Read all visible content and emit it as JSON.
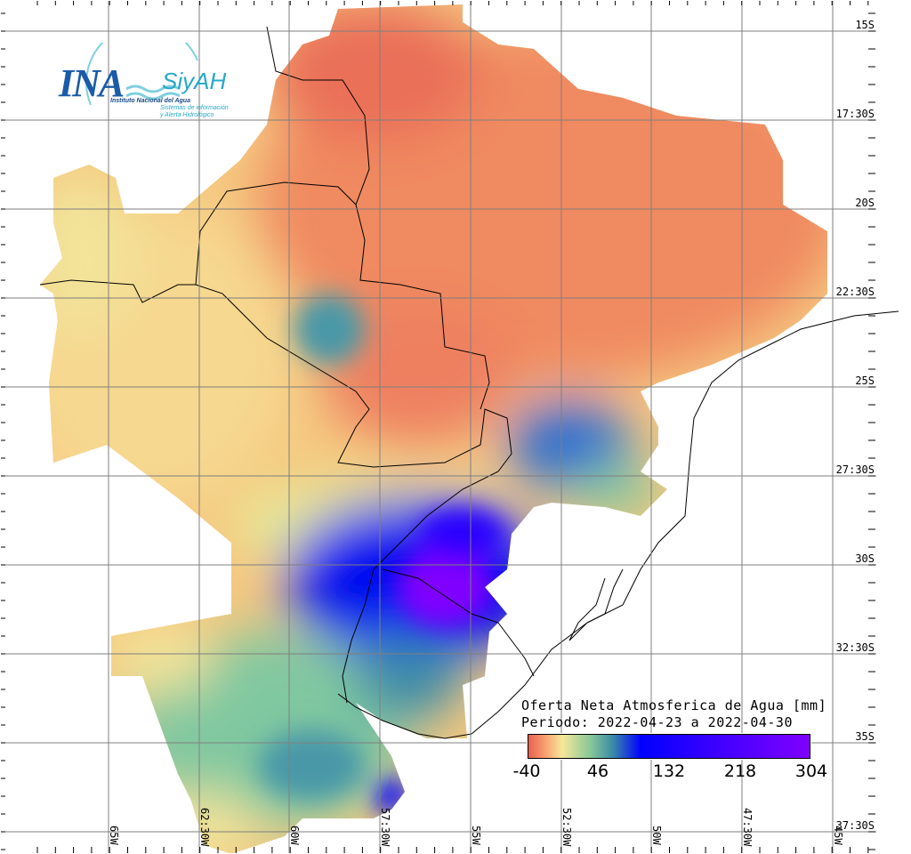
{
  "logo": {
    "acronym": "INA",
    "system": "SiyAH",
    "institute": "Instituto Nacional del Agua",
    "system_line1": "Sistemas de información",
    "system_line2": "y Alerta Hidrológico"
  },
  "latitude_labels": [
    "15S",
    "17:30S",
    "20S",
    "22:30S",
    "25S",
    "27:30S",
    "30S",
    "32:30S",
    "35S",
    "37:30S"
  ],
  "longitude_labels": [
    "65W",
    "62:30W",
    "60W",
    "57:30W",
    "55W",
    "52:30W",
    "50W",
    "47:30W",
    "45W"
  ],
  "legend": {
    "title": "Oferta Neta Atmosferica de Agua [mm]",
    "period": "Periodo: 2022-04-23 a 2022-04-30",
    "ticks": [
      "-40",
      "46",
      "132",
      "218",
      "304"
    ],
    "range": [
      -40,
      304
    ],
    "colors": [
      "#e86050",
      "#f8a070",
      "#f6e89a",
      "#e8ee98",
      "#88c898",
      "#3a8aa8",
      "#0000ff",
      "#4400ff",
      "#8000ff"
    ]
  }
}
